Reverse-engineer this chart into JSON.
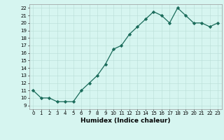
{
  "x": [
    0,
    1,
    2,
    3,
    4,
    5,
    6,
    7,
    8,
    9,
    10,
    11,
    12,
    13,
    14,
    15,
    16,
    17,
    18,
    19,
    20,
    21,
    22,
    23
  ],
  "y": [
    11,
    10,
    10,
    9.5,
    9.5,
    9.5,
    11,
    12,
    13,
    14.5,
    16.5,
    17,
    18.5,
    19.5,
    20.5,
    21.5,
    21,
    20,
    22,
    21,
    20,
    20,
    19.5,
    20
  ],
  "line_color": "#1a6b5a",
  "marker": "D",
  "markersize": 2.2,
  "linewidth": 0.9,
  "bg_color": "#d6f5f0",
  "grid_color": "#b8ddd6",
  "xlabel": "Humidex (Indice chaleur)",
  "xlim": [
    -0.5,
    23.5
  ],
  "ylim": [
    8.5,
    22.5
  ],
  "yticks": [
    9,
    10,
    11,
    12,
    13,
    14,
    15,
    16,
    17,
    18,
    19,
    20,
    21,
    22
  ],
  "xticks": [
    0,
    1,
    2,
    3,
    4,
    5,
    6,
    7,
    8,
    9,
    10,
    11,
    12,
    13,
    14,
    15,
    16,
    17,
    18,
    19,
    20,
    21,
    22,
    23
  ],
  "xtick_labels": [
    "0",
    "1",
    "2",
    "3",
    "4",
    "5",
    "6",
    "7",
    "8",
    "9",
    "10",
    "11",
    "12",
    "13",
    "14",
    "15",
    "16",
    "17",
    "18",
    "19",
    "20",
    "21",
    "22",
    "23"
  ],
  "xlabel_fontsize": 6.5,
  "tick_fontsize": 5.0
}
